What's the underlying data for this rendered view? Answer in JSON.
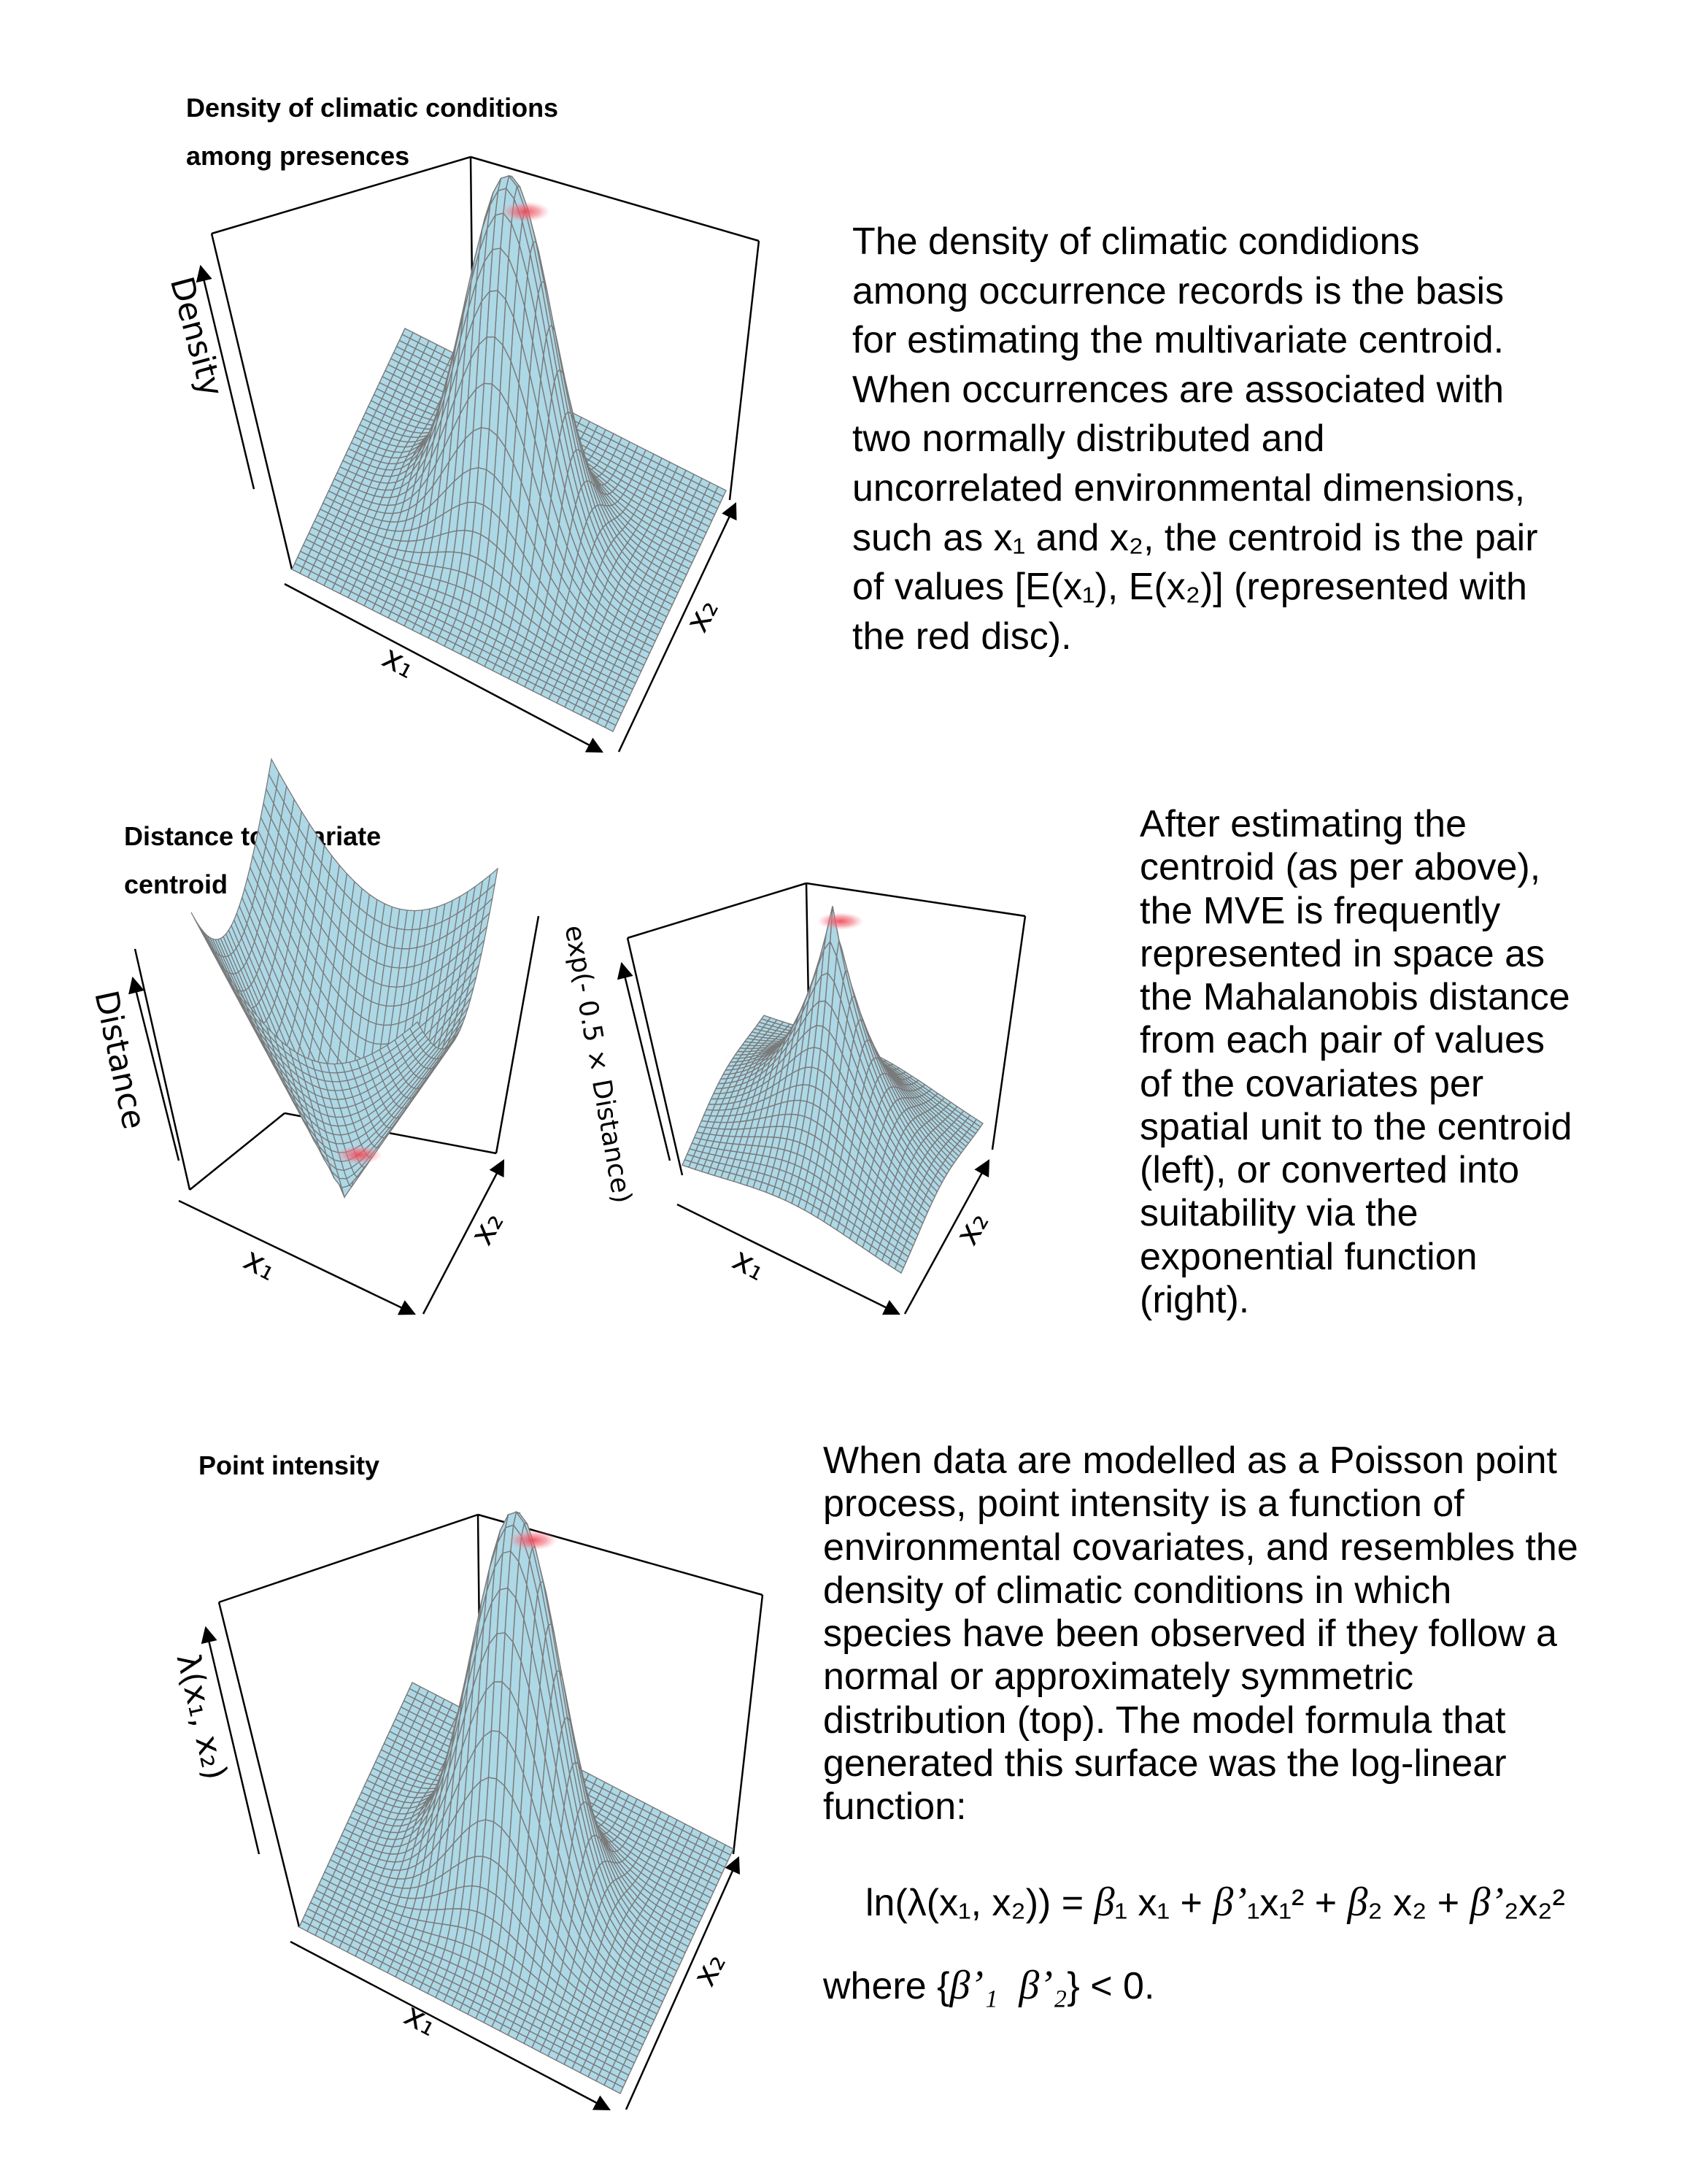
{
  "panels": [
    {
      "id": "density",
      "title_lines": [
        "Density of climatic conditions",
        "among presences"
      ],
      "z_label": "Density",
      "x1_label": "x₁",
      "x2_label": "x₂"
    },
    {
      "id": "distance",
      "title_lines": [
        "Distance to bivariate",
        "centroid"
      ],
      "z_label": "Distance",
      "x1_label": "x₁",
      "x2_label": "x₂"
    },
    {
      "id": "suitability",
      "title_lines": [],
      "z_label": "exp(- 0.5 × Distance)",
      "x1_label": "x₁",
      "x2_label": "x₂"
    },
    {
      "id": "intensity",
      "title_lines": [
        "Point intensity"
      ],
      "z_label": "λ(x₁, x₂)",
      "x1_label": "x₁",
      "x2_label": "x₂"
    }
  ],
  "text_blocks": {
    "density": {
      "lines": [
        "The density of climatic condidions",
        "among occurrence records is the basis",
        "for estimating the multivariate centroid.",
        "When occurrences are associated with",
        "two normally distributed and",
        "uncorrelated environmental dimensions,",
        "such as x₁ and x₂, the centroid is the pair",
        "of values [E(x₁), E(x₂)] (represented with",
        "the red disc)."
      ]
    },
    "mve": {
      "lines": [
        "After estimating the",
        "centroid (as per above),",
        "the MVE is frequently",
        "represented in space as",
        "the Mahalanobis distance",
        "from each pair of values",
        "of the  covariates per",
        "spatial unit to the centroid",
        "(left), or converted into",
        "suitability via the",
        "exponential function",
        "(right)."
      ]
    },
    "intensity": {
      "lines": [
        "When data are modelled as a Poisson point",
        "process, point intensity is a function of",
        "environmental covariates, and resembles the",
        "density of climatic conditions in which",
        "species have been observed if they follow a",
        "normal or approximately symmetric",
        "distribution  (top). The model formula that",
        "generated this surface was the log-linear",
        "function:"
      ],
      "formula": {
        "lhs": "ln(λ(x₁, x₂)) = ",
        "b1": "β",
        "t1": "₁ x₁ + ",
        "b1p": "β’",
        "t2": "₁x₁² + ",
        "b2": "β",
        "t3": "₂ x₂ + ",
        "b2p": "β’",
        "t4": "₂x₂²"
      },
      "where": {
        "pre": "where {",
        "b1p": "β’₁",
        "sp": "  ",
        "b2p": "β’₂",
        "post": "} < 0."
      }
    }
  },
  "colors": {
    "surface": "#add8e6",
    "mesh": "#7a7a7a",
    "centroid_disc": "#f04a5a",
    "box": "#000000"
  }
}
